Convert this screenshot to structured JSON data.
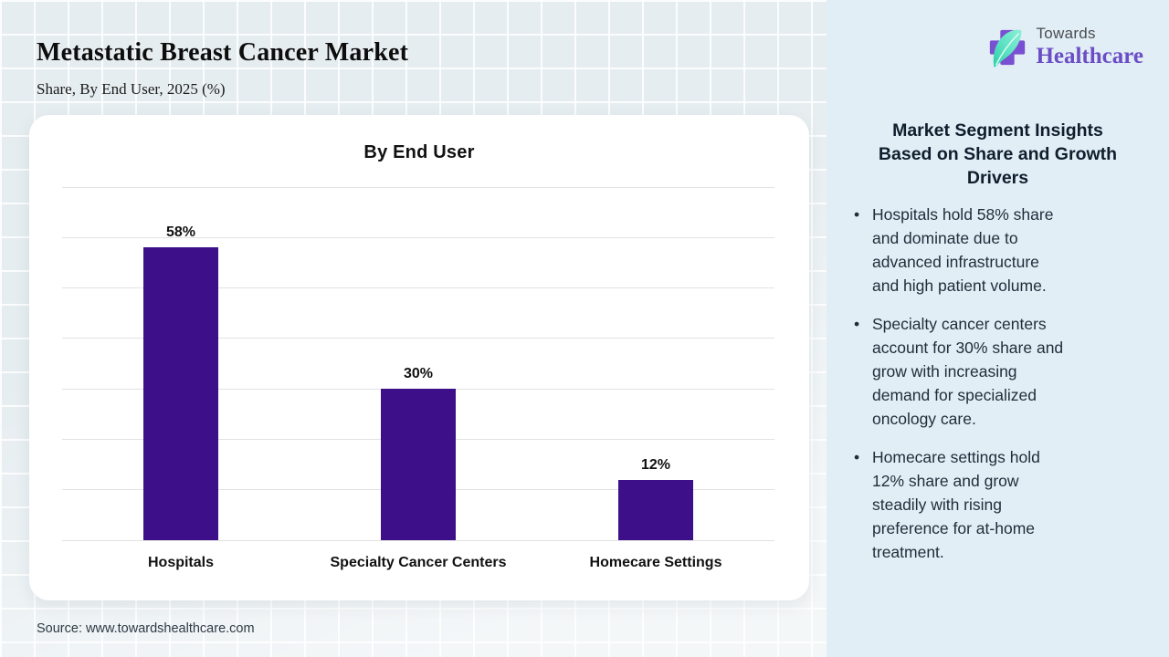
{
  "header": {
    "title": "Metastatic Breast Cancer Market",
    "subtitle": "Share, By End User, 2025 (%)"
  },
  "source": "Source: www.towardshealthcare.com",
  "logo": {
    "line1": "Towards",
    "line2": "Healthcare"
  },
  "insights": {
    "heading": "Market Segment Insights\nBased on Share and Growth\nDrivers",
    "bullets": [
      "Hospitals hold 58% share\nand dominate due to\nadvanced infrastructure\nand high patient volume.",
      "Specialty cancer centers\naccount for 30% share and\ngrow with increasing\ndemand for specialized\noncology care.",
      "Homecare settings hold\n12% share and grow\nsteadily with rising\npreference for at-home\ntreatment."
    ]
  },
  "chart_data": {
    "type": "bar",
    "title": "By End User",
    "categories": [
      "Hospitals",
      "Specialty Cancer Centers",
      "Homecare Settings"
    ],
    "values": [
      58,
      30,
      12
    ],
    "labels": [
      "58%",
      "30%",
      "12%"
    ],
    "xlabel": "",
    "ylabel": "",
    "ylim": [
      0,
      70
    ],
    "gridline_step": 10,
    "grid": true,
    "legend": "none",
    "bar_color": "#3d108a"
  },
  "colors": {
    "left_background": "#e6edf0",
    "panel_background": "#e1eef5",
    "bar": "#3d108a",
    "gridline": "#e2e2e2",
    "logo_purple": "#6b4ec6",
    "leaf_teal": "#2dcfa9",
    "heading_text": "#0f1e2d",
    "body_text": "#1f2d3a"
  }
}
